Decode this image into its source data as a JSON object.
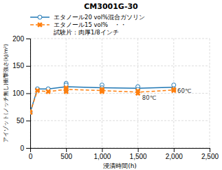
{
  "chart_data": {
    "type": "line",
    "title": "CM3001G-30",
    "x_label": "浸漬時間(h)",
    "y_label": "アイゾット(ノッチ無し)衝撃強さ(kJ/m²)",
    "xlim": [
      0,
      2500
    ],
    "ylim": [
      0,
      200
    ],
    "xticks": [
      0,
      500,
      {
        "value": 1000,
        "label": "1,000"
      },
      {
        "value": 1500,
        "label": "1,500"
      },
      {
        "value": 2000,
        "label": "2,000"
      },
      {
        "value": 2500,
        "label": "2,500"
      }
    ],
    "yticks": [
      0,
      50,
      100,
      150,
      200
    ],
    "grid": true,
    "legend_note": "試験片：肉厚1/8インチ",
    "series": [
      {
        "name": "エタノール20 vol%混合ガソリン",
        "line_style": "solid",
        "marker": "circle",
        "x": [
          0,
          100,
          250,
          500,
          1000,
          1500,
          2000
        ],
        "values": [
          65,
          108,
          108,
          112,
          110,
          109,
          111
        ],
        "points_x": [
          0,
          100,
          250,
          500,
          500,
          500,
          1000,
          1000,
          1000,
          1500,
          1500,
          2000,
          2000
        ],
        "points_y": [
          65,
          108,
          108,
          118,
          115,
          105,
          115,
          110,
          107,
          112,
          107,
          115,
          108
        ]
      },
      {
        "name": "エタノール15 vol%　・・",
        "line_style": "dashed",
        "marker": "x",
        "x": [
          0,
          100,
          250,
          500,
          1000,
          1500,
          2000
        ],
        "values": [
          65,
          105,
          103,
          107,
          105,
          102,
          106
        ],
        "points_x": [
          0,
          100,
          250,
          500,
          500,
          500,
          1000,
          1000,
          1000,
          1500,
          1500,
          2000,
          2000
        ],
        "points_y": [
          65,
          105,
          103,
          110,
          107,
          103,
          107,
          105,
          103,
          104,
          100,
          107,
          105
        ]
      }
    ],
    "annotations": [
      {
        "text": "60℃",
        "x": 2050,
        "y": 111
      },
      {
        "text": "80℃",
        "x": 1560,
        "y": 99
      }
    ]
  }
}
